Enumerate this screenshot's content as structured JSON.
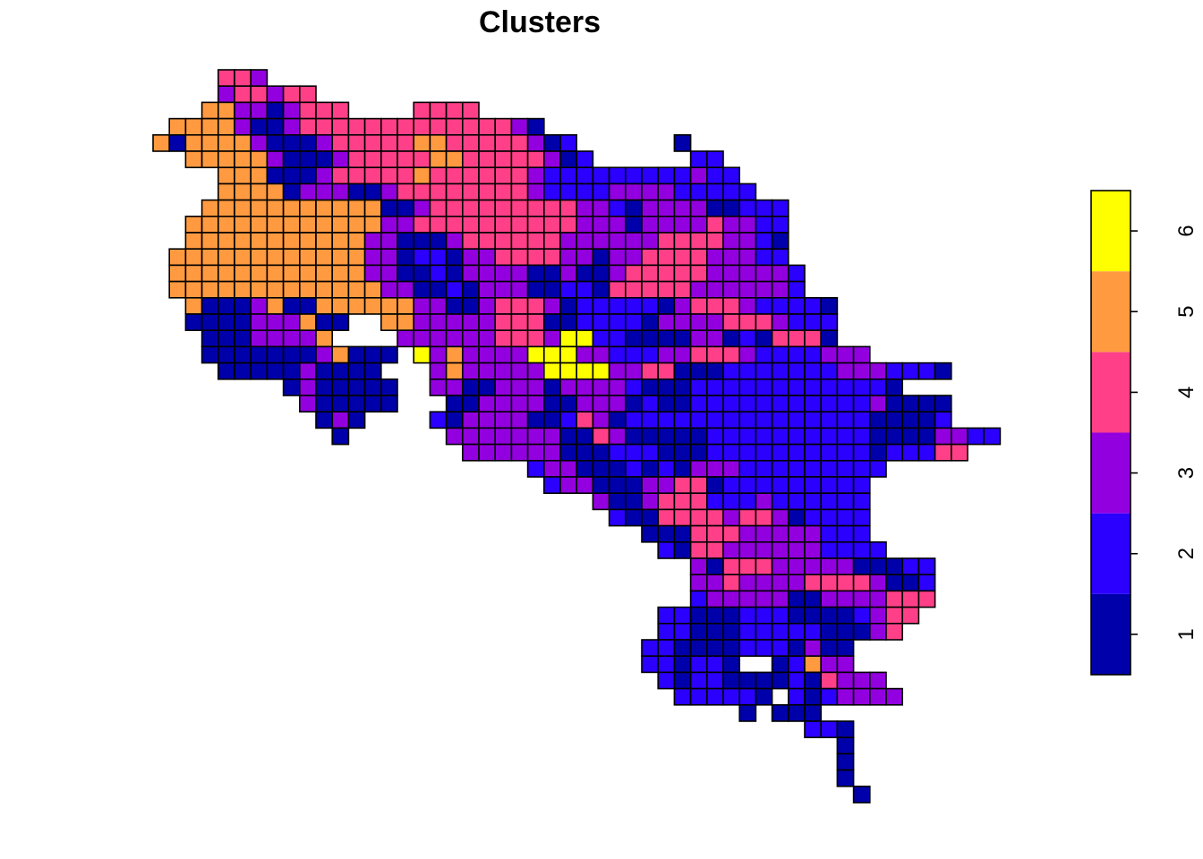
{
  "chart_data": {
    "type": "heatmap",
    "title": "Clusters",
    "xlabel": "",
    "ylabel": "",
    "legend": {
      "placement": "right",
      "ticks": [
        "1",
        "2",
        "3",
        "4",
        "5",
        "6"
      ],
      "range": [
        0.5,
        6.5
      ]
    },
    "palette": {
      "1": "#0000AA",
      "2": "#2B00FF",
      "3": "#9300E0",
      "4": "#FF4088",
      "5": "#FF9A40",
      "6": "#FFFF00"
    },
    "grid": {
      "origin_col": 171,
      "origin_row": 78,
      "cell": 18.2,
      "rows": [
        [
          4,
          [
            4,
            4,
            3
          ]
        ],
        [
          4,
          [
            3,
            4,
            4,
            3,
            4,
            4
          ]
        ],
        [
          3,
          [
            5,
            5,
            3,
            3,
            1,
            3,
            4,
            4,
            4
          ],
          [
            16,
            [
              4,
              4,
              4,
              4
            ]
          ]
        ],
        [
          1,
          [
            5,
            5,
            5,
            5,
            3,
            1,
            1,
            3,
            4,
            4,
            4,
            4,
            4,
            4,
            4,
            4,
            4,
            4,
            4,
            4,
            4,
            3,
            1
          ]
        ],
        [
          0,
          [
            5,
            1,
            5,
            5,
            5,
            5,
            3,
            1,
            1,
            1,
            3,
            4,
            4,
            4,
            4,
            4,
            5,
            5,
            4,
            4,
            4,
            4,
            4,
            3,
            1,
            2
          ],
          [
            32,
            [
              1
            ]
          ]
        ],
        [
          2,
          [
            5,
            5,
            5,
            5,
            5,
            3,
            1,
            1,
            1,
            3,
            4,
            4,
            4,
            4,
            4,
            5,
            5,
            4,
            4,
            4,
            4,
            4,
            3,
            1,
            2
          ],
          [
            33,
            [
              2,
              2
            ]
          ]
        ],
        [
          4,
          [
            5,
            5,
            5,
            1,
            1,
            1,
            3,
            4,
            4,
            4,
            4,
            4,
            5,
            4,
            4,
            4,
            4,
            4,
            4,
            3,
            2,
            2,
            2,
            2,
            2,
            2
          ],
          [
            30,
            [
              2,
              2,
              2,
              3,
              2,
              2
            ]
          ]
        ],
        [
          4,
          [
            5,
            5,
            5,
            5,
            1,
            3,
            3,
            3,
            1,
            1,
            3,
            4,
            4,
            4,
            4,
            4,
            4,
            4,
            4,
            3,
            2,
            2,
            2,
            2,
            3,
            3,
            3,
            3,
            2,
            2,
            2,
            2,
            2
          ]
        ],
        [
          3,
          [
            5,
            5,
            5,
            5,
            5,
            5,
            5,
            5,
            5,
            5,
            5,
            1,
            1,
            3,
            4,
            4,
            4,
            4,
            4,
            4,
            4,
            4,
            4,
            3,
            3,
            2,
            1,
            3,
            3,
            3,
            3,
            1,
            1,
            2,
            2,
            2
          ]
        ],
        [
          2,
          [
            5,
            5,
            5,
            5,
            5,
            5,
            5,
            5,
            5,
            5,
            5,
            5,
            3,
            3,
            4,
            4,
            4,
            4,
            4,
            4,
            4,
            4,
            4,
            4,
            3,
            3,
            3,
            1,
            3,
            3,
            3,
            3,
            4,
            3,
            3,
            2,
            2
          ]
        ],
        [
          2,
          [
            5,
            5,
            5,
            5,
            5,
            5,
            5,
            5,
            5,
            5,
            5,
            3,
            3,
            1,
            1,
            1,
            3,
            4,
            4,
            4,
            4,
            4,
            4,
            3,
            3,
            3,
            3,
            3,
            3,
            4,
            4,
            4,
            4,
            3,
            3,
            2,
            1
          ]
        ],
        [
          1,
          [
            5,
            5,
            5,
            5,
            5,
            5,
            5,
            5,
            5,
            5,
            5,
            5,
            3,
            3,
            1,
            2,
            2,
            1,
            3,
            3,
            4,
            4,
            4,
            4,
            3,
            3,
            1,
            3,
            3,
            4,
            4,
            4,
            4,
            3,
            3,
            3,
            2,
            2
          ]
        ],
        [
          1,
          [
            5,
            5,
            5,
            5,
            5,
            5,
            5,
            5,
            5,
            5,
            5,
            5,
            3,
            3,
            1,
            1,
            2,
            1,
            3,
            3,
            3,
            3,
            1,
            1,
            3,
            1,
            1,
            3,
            4,
            4,
            4,
            4,
            4,
            3,
            3,
            3,
            3,
            3,
            2
          ]
        ],
        [
          1,
          [
            5,
            5,
            5,
            5,
            5,
            5,
            5,
            5,
            5,
            5,
            5,
            5,
            5,
            3,
            3,
            1,
            1,
            2,
            1,
            3,
            3,
            3,
            1,
            1,
            2,
            2,
            1,
            4,
            4,
            4,
            4,
            4,
            3,
            3,
            3,
            3,
            3,
            3,
            2
          ]
        ],
        [
          2,
          [
            5,
            1,
            1,
            1,
            3,
            5,
            1,
            1,
            5,
            5,
            5,
            5,
            5,
            5,
            3,
            3,
            1,
            1,
            3,
            4,
            4,
            4,
            3,
            1,
            2,
            2,
            2,
            2,
            2,
            1,
            3,
            4,
            4,
            4,
            3,
            2,
            2,
            2,
            2,
            1
          ]
        ],
        [
          2,
          [
            1,
            1,
            1,
            1,
            3,
            3,
            3,
            5,
            1,
            1
          ],
          [
            14,
            [
              5,
              5,
              3,
              3,
              3,
              3,
              3,
              4,
              4,
              4,
              1,
              1,
              2,
              2,
              2,
              2,
              1,
              3,
              3,
              3,
              3,
              4,
              4,
              4,
              3,
              2,
              2,
              2
            ]
          ]
        ],
        [
          3,
          [
            1,
            1,
            1,
            3,
            3,
            3,
            3,
            5
          ],
          [
            15,
            [
              3,
              3,
              3,
              3,
              3,
              3,
              4,
              4,
              4,
              3,
              6,
              6,
              2,
              2,
              1,
              1,
              1,
              1,
              3,
              3,
              1,
              2,
              1,
              4,
              4,
              4,
              1
            ]
          ]
        ],
        [
          3,
          [
            1,
            1,
            1,
            1,
            1,
            1,
            1,
            3,
            5,
            1,
            1,
            1
          ],
          [
            16,
            [
              6,
              3,
              5,
              3,
              3,
              3,
              3,
              6,
              6,
              6,
              3,
              3,
              2,
              2,
              2,
              3,
              3,
              4,
              4,
              4,
              3,
              2,
              2,
              2,
              2,
              3,
              3,
              3
            ]
          ]
        ],
        [
          4,
          [
            1,
            1,
            1,
            1,
            1,
            3,
            1,
            1,
            1,
            1
          ],
          [
            17,
            [
              3,
              5,
              3,
              3,
              3,
              3,
              3,
              6,
              6,
              6,
              6,
              3,
              3,
              4,
              4,
              1,
              1,
              1,
              2,
              2,
              2,
              2,
              2,
              2,
              2,
              3,
              3,
              3,
              2,
              2,
              2,
              1
            ]
          ]
        ],
        [
          8,
          [
            1,
            3,
            1,
            1,
            1,
            1,
            1
          ],
          [
            17,
            [
              3,
              3,
              1,
              1,
              3,
              3,
              3,
              1,
              3,
              3,
              3,
              3,
              2,
              1,
              1,
              1,
              2,
              2,
              2,
              2,
              2,
              2,
              2,
              2,
              2,
              2,
              2,
              2,
              1
            ]
          ]
        ],
        [
          9,
          [
            3,
            1,
            1,
            1,
            1,
            1
          ],
          [
            18,
            [
              1,
              1,
              3,
              3,
              3,
              3,
              1,
              1,
              3,
              3,
              3,
              1,
              2,
              1,
              1,
              2,
              2,
              2,
              2,
              2,
              2,
              2,
              2,
              2,
              2,
              2,
              3,
              1,
              1,
              1,
              1
            ]
          ]
        ],
        [
          10,
          [
            1,
            3,
            1
          ],
          [
            17,
            [
              2,
              1,
              3,
              3,
              3,
              3,
              1,
              1,
              2,
              4,
              3,
              1,
              2,
              2,
              2,
              2,
              2,
              2,
              2,
              2,
              2,
              2,
              2,
              2,
              2,
              2,
              2,
              1,
              1,
              1,
              1,
              2
            ]
          ]
        ],
        [
          11,
          [
            1
          ],
          [
            18,
            [
              3,
              3,
              3,
              3,
              3,
              3,
              3,
              1,
              1,
              4,
              3,
              1,
              1,
              1,
              1,
              1,
              2,
              2,
              2,
              2,
              2,
              2,
              2,
              2,
              2,
              2,
              1,
              1,
              1,
              1,
              3,
              3,
              2,
              2
            ]
          ]
        ],
        [
          19,
          [
            3,
            3,
            3,
            3,
            3,
            3,
            1,
            1,
            1,
            2,
            2,
            2,
            1,
            1,
            1,
            2,
            2,
            2,
            2,
            2,
            2,
            2,
            2,
            2,
            2,
            1,
            2,
            2,
            2,
            4,
            4
          ]
        ],
        [
          23,
          [
            2,
            3,
            3,
            1,
            1,
            1,
            2,
            1,
            2,
            1,
            3,
            3,
            3,
            2,
            2,
            2,
            2,
            2,
            2,
            2,
            2,
            2
          ]
        ],
        [
          24,
          [
            2,
            3,
            3,
            1,
            1,
            1,
            3,
            3,
            4,
            4,
            1,
            2,
            2,
            2,
            2,
            2,
            2,
            2,
            2,
            2
          ]
        ],
        [
          27,
          [
            3,
            1,
            1,
            3,
            4,
            4,
            4,
            2,
            2,
            2,
            3,
            2,
            2,
            2,
            2,
            2,
            2
          ]
        ],
        [
          28,
          [
            2,
            1,
            1,
            4,
            4,
            4,
            4,
            3,
            4,
            4,
            3,
            1,
            2,
            2,
            2,
            2
          ]
        ],
        [
          30,
          [
            1,
            1,
            1,
            4,
            4,
            4,
            3,
            3,
            3,
            3,
            3,
            2,
            2,
            2
          ]
        ],
        [
          31,
          [
            2,
            1,
            4,
            4,
            3,
            3,
            3,
            3,
            3,
            3,
            2,
            2,
            2,
            2
          ]
        ],
        [
          33,
          [
            3,
            1,
            4,
            4,
            4,
            3,
            3,
            3,
            3,
            3,
            1,
            1,
            1,
            2,
            2
          ]
        ],
        [
          33,
          [
            3,
            3,
            4,
            3,
            3,
            3,
            3,
            4,
            4,
            4,
            4,
            3,
            1,
            1,
            2
          ]
        ],
        [
          33,
          [
            2,
            3,
            3,
            3,
            3,
            3,
            1,
            1,
            3,
            3,
            3,
            3,
            4,
            4,
            4
          ]
        ],
        [
          31,
          [
            2,
            2,
            1,
            1,
            1,
            2,
            2,
            2,
            1,
            1,
            1,
            1,
            2,
            3,
            4,
            4
          ]
        ],
        [
          31,
          [
            2,
            2,
            1,
            1,
            1,
            2,
            2,
            2,
            2,
            2,
            1,
            1,
            1,
            3,
            4
          ]
        ],
        [
          30,
          [
            2,
            2,
            1,
            1,
            1,
            1,
            2,
            2,
            2
          ],
          [
            39,
            [
              1,
              3,
              1,
              1
            ]
          ]
        ],
        [
          30,
          [
            2,
            2,
            1,
            2,
            2,
            1
          ],
          [
            38,
            [
              1,
              2,
              5,
              3,
              3
            ]
          ]
        ],
        [
          31,
          [
            2,
            1,
            2,
            2,
            1,
            1,
            1,
            1
          ],
          [
            39,
            [
              2,
              1,
              4,
              3,
              3,
              3
            ]
          ]
        ],
        [
          32,
          [
            2,
            2,
            2,
            2,
            2,
            1
          ],
          [
            39,
            [
              2,
              1,
              2,
              3,
              3,
              3,
              3
            ]
          ]
        ],
        [
          36,
          [
            1
          ],
          [
            38,
            [
              1,
              1,
              1
            ]
          ]
        ],
        [
          40,
          [
            2,
            2,
            1
          ]
        ],
        [
          42,
          [
            1
          ]
        ],
        [
          42,
          [
            1
          ]
        ],
        [
          42,
          [
            1
          ]
        ],
        [
          43,
          [
            1
          ]
        ]
      ]
    }
  }
}
